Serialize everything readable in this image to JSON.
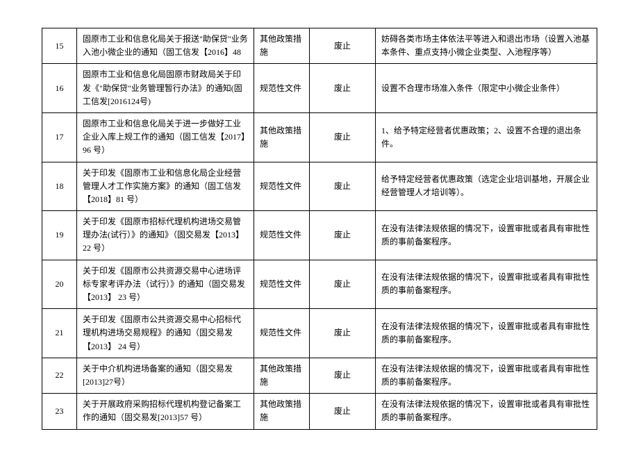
{
  "table": {
    "columns": {
      "num_width": 50,
      "title_width": 255,
      "type_width": 80,
      "status_width": 95
    },
    "font_size": 12,
    "border_color": "#000000",
    "background_color": "#ffffff",
    "text_color": "#000000",
    "rows": [
      {
        "num": "15",
        "title": "固原市工业和信息化局关于报送\"助保贷\"业务入池小微企业的通知（固工信发【2016】48",
        "type": "其他政策措施",
        "status": "废止",
        "reason": "妨碍各类市场主体依法平等进入和退出市场（设置入池基本条件、重点支持小微企业类型、入池程序等）"
      },
      {
        "num": "16",
        "title": "固原市工业和信息化局固原市财政局关于印发《\"助保贷\"业务管理暂行办法》的通知(固工信发[2016124号)",
        "type": "规范性文件",
        "status": "废止",
        "reason": "设置不合理市场准入条件（限定中小微企业条件）"
      },
      {
        "num": "17",
        "title": "固原市工业和信息化局关于进一步做好工业企业入库上规工作的通知（固工信发【2017】96 号）",
        "type": "其他政策措施",
        "status": "废止",
        "reason": "1、给予特定经营者优惠政策；2、设置不合理的退出条件。"
      },
      {
        "num": "18",
        "title": "关于印发《固原市工业和信息化局企业经营管理人才工作实施方案》的通知（固工信发【2018】81 号）",
        "type": "规范性文件",
        "status": "废止",
        "reason": "给予特定经营者优惠政策（选定企业培训基地，开展企业经营管理人才培训等）。"
      },
      {
        "num": "19",
        "title": "关于印发《固原市招标代理机构进场交易管理办法(试行）》的通知》（固交易发【2013】22 号）",
        "type": "规范性文件",
        "status": "废止",
        "reason": "在没有法律法规依据的情况下，设置审批或者具有审批性质的事前备案程序。"
      },
      {
        "num": "20",
        "title": "关于印发《固原市公共资源交易中心进场评标专家考评办法（试行）》的通知（固交易发【2013】\n23 号）",
        "type": "规范性文件",
        "status": "废止",
        "reason": "在没有法律法规依据的情况下，设置审批或者具有审批性质的事前备案程序。"
      },
      {
        "num": "21",
        "title": "关于印发《固原市公共资源交易中心招标代理机构进场交易规程》的通知（固交易发【2013】\n24 号）",
        "type": "规范性文件",
        "status": "废止",
        "reason": "在没有法律法规依据的情况下，设置审批或者具有审批性质的事前备案程序。"
      },
      {
        "num": "22",
        "title": "关于中介机构进场备案的通知（固交易发[2013]27号）",
        "type": "其他政策措施",
        "status": "废止",
        "reason": "在没有法律法规依据的情况下，设置审批或者具有审批性质的事前备案程序。"
      },
      {
        "num": "23",
        "title": "关于开展政府采购招标代理机构登记备案工作的通知（固交易发[2013]57 号）",
        "type": "其他政策措施",
        "status": "废止",
        "reason": "在没有法律法规依据的情况下，设置审批或者具有审批性质的事前备案程序。"
      }
    ]
  }
}
